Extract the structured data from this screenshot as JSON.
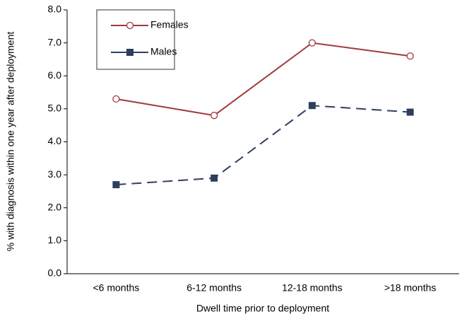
{
  "chart_data": {
    "type": "line",
    "x_label": "Dwell time prior to deployment",
    "y_label": "% with diagnosis within one year after deployment",
    "categories": [
      "<6 months",
      "6-12 months",
      "12-18 months",
      ">18 months"
    ],
    "series": [
      {
        "name": "Females",
        "color": "#a03a3a",
        "marker": "circle",
        "linestyle": "solid",
        "values": [
          5.3,
          4.8,
          7.0,
          6.6
        ]
      },
      {
        "name": "Males",
        "color": "#2e3f5e",
        "marker": "square",
        "linestyle": "dashed",
        "values": [
          2.7,
          2.9,
          5.1,
          4.9
        ]
      }
    ],
    "ylim": [
      0,
      8
    ],
    "yticks": [
      {
        "value": 0,
        "label": "0.0"
      },
      {
        "value": 1,
        "label": "1.0"
      },
      {
        "value": 2,
        "label": "2.0"
      },
      {
        "value": 3,
        "label": "3.0"
      },
      {
        "value": 4,
        "label": "4.0"
      },
      {
        "value": 5,
        "label": "5.0"
      },
      {
        "value": 6,
        "label": "6.0"
      },
      {
        "value": 7,
        "label": "7.0"
      },
      {
        "value": 8,
        "label": "8.0"
      }
    ],
    "legend": "upper left"
  }
}
